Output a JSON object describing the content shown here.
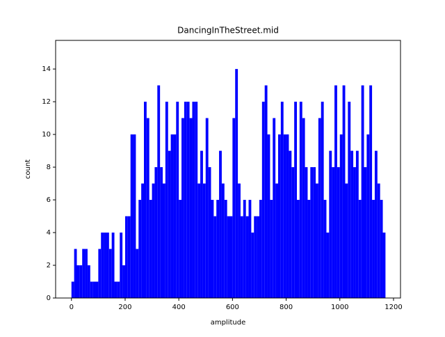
{
  "chart_data": {
    "type": "histogram",
    "title": "DancingInTheStreet.mid",
    "xlabel": "amplitude",
    "ylabel": "count",
    "color": "#0000ff",
    "bins": [
      0,
      10,
      20,
      30,
      40,
      50,
      60,
      70,
      80,
      90,
      100,
      110,
      120,
      130,
      140,
      150,
      160,
      170,
      180,
      190,
      200,
      210,
      220,
      230,
      240,
      250,
      260,
      270,
      280,
      290,
      300,
      310,
      320,
      330,
      340,
      350,
      360,
      370,
      380,
      390,
      400,
      410,
      420,
      430,
      440,
      450,
      460,
      470,
      480,
      490,
      500,
      510,
      520,
      530,
      540,
      550,
      560,
      570,
      580,
      590,
      600,
      610,
      620,
      630,
      640,
      650,
      660,
      670,
      680,
      690,
      700,
      710,
      720,
      730,
      740,
      750,
      760,
      770,
      780,
      790,
      800,
      810,
      820,
      830,
      840,
      850,
      860,
      870,
      880,
      890,
      900,
      910,
      920,
      930,
      940,
      950,
      960,
      970,
      980,
      990,
      1000,
      1010,
      1020,
      1030,
      1040,
      1050,
      1060,
      1070,
      1080,
      1090,
      1100,
      1110,
      1120,
      1130,
      1140,
      1150,
      1160,
      1170
    ],
    "values": [
      1,
      3,
      2,
      2,
      3,
      3,
      2,
      1,
      1,
      1,
      3,
      4,
      4,
      4,
      3,
      4,
      1,
      1,
      4,
      2,
      5,
      5,
      10,
      10,
      3,
      6,
      7,
      12,
      11,
      6,
      7,
      8,
      13,
      8,
      7,
      12,
      9,
      10,
      10,
      12,
      6,
      11,
      12,
      12,
      11,
      12,
      12,
      7,
      9,
      7,
      11,
      8,
      6,
      5,
      6,
      9,
      7,
      6,
      5,
      5,
      11,
      14,
      7,
      5,
      6,
      5,
      6,
      4,
      5,
      5,
      6,
      12,
      13,
      10,
      6,
      11,
      7,
      10,
      12,
      10,
      10,
      9,
      8,
      12,
      6,
      12,
      11,
      8,
      6,
      8,
      8,
      7,
      11,
      12,
      6,
      4,
      9,
      8,
      13,
      8,
      10,
      13,
      7,
      12,
      9,
      8,
      9,
      6,
      13,
      8,
      10,
      13,
      6,
      9,
      7,
      6,
      4
    ],
    "xlim": [
      -59,
      1226
    ],
    "ylim": [
      0,
      15.75
    ],
    "xticks": [
      0,
      200,
      400,
      600,
      800,
      1000,
      1200
    ],
    "yticks": [
      0,
      2,
      4,
      6,
      8,
      10,
      12,
      14
    ]
  }
}
